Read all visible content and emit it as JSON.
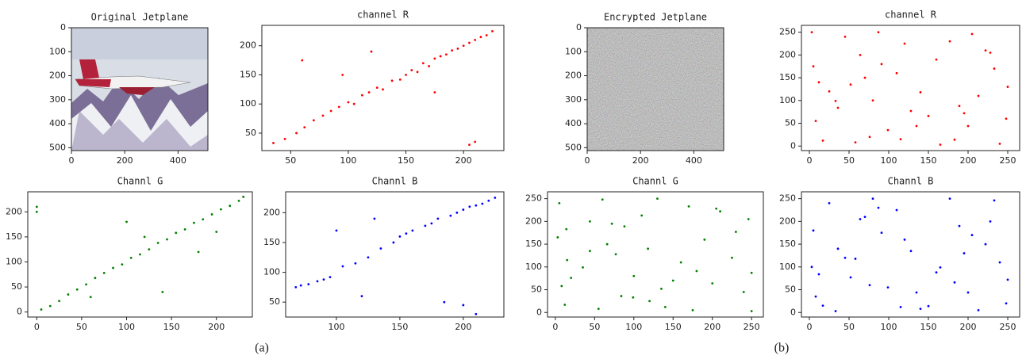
{
  "chart_data": [
    {
      "type": "image",
      "title": "Original  Jetplane",
      "xlim": [
        0,
        512
      ],
      "ylim": [
        512,
        0
      ],
      "xticks": [
        0,
        200,
        400
      ],
      "yticks": [
        0,
        100,
        200,
        300,
        400,
        500
      ]
    },
    {
      "type": "scatter",
      "title": "channel R",
      "color": "#ff0000",
      "xlim": [
        25,
        235
      ],
      "ylim": [
        20,
        235
      ],
      "xticks": [
        50,
        100,
        150,
        200
      ],
      "yticks": [
        50,
        100,
        150,
        200
      ],
      "x": [
        35,
        45,
        55,
        62,
        70,
        78,
        85,
        92,
        100,
        105,
        112,
        118,
        125,
        130,
        138,
        145,
        150,
        155,
        160,
        165,
        170,
        175,
        180,
        185,
        190,
        195,
        200,
        205,
        210,
        215,
        220,
        225,
        60,
        120,
        205,
        95,
        175,
        210
      ],
      "values": [
        33,
        40,
        50,
        60,
        72,
        80,
        88,
        95,
        103,
        100,
        115,
        120,
        128,
        125,
        140,
        142,
        150,
        158,
        155,
        170,
        165,
        178,
        182,
        185,
        192,
        195,
        200,
        205,
        210,
        215,
        218,
        225,
        175,
        190,
        30,
        150,
        120,
        35
      ]
    },
    {
      "type": "image",
      "title": "Encrypted  Jetplane",
      "xlim": [
        0,
        512
      ],
      "ylim": [
        512,
        0
      ],
      "xticks": [
        0,
        200,
        400
      ],
      "yticks": [
        0,
        100,
        200,
        300,
        400,
        500
      ]
    },
    {
      "type": "scatter",
      "title": "channel R",
      "color": "#ff0000",
      "xlim": [
        -10,
        265
      ],
      "ylim": [
        -10,
        265
      ],
      "xticks": [
        0,
        50,
        100,
        150,
        200,
        250
      ],
      "yticks": [
        0,
        50,
        100,
        150,
        200,
        250
      ],
      "x": [
        3,
        17,
        250,
        128,
        64,
        200,
        91,
        33,
        177,
        240,
        12,
        150,
        222,
        76,
        110,
        45,
        189,
        8,
        233,
        140,
        58,
        205,
        99,
        160,
        25,
        120,
        248,
        70,
        183,
        36,
        213,
        87,
        165,
        5,
        135,
        228,
        52,
        195,
        115,
        80
      ],
      "values": [
        250,
        12,
        130,
        77,
        200,
        44,
        180,
        99,
        230,
        5,
        140,
        66,
        210,
        20,
        160,
        240,
        88,
        55,
        170,
        118,
        8,
        246,
        35,
        190,
        120,
        225,
        60,
        150,
        14,
        84,
        110,
        250,
        3,
        175,
        44,
        205,
        135,
        72,
        15,
        100
      ]
    },
    {
      "type": "scatter",
      "title": "Channl G",
      "color": "#008000",
      "xlim": [
        -10,
        240
      ],
      "ylim": [
        -10,
        240
      ],
      "xticks": [
        0,
        50,
        100,
        150,
        200
      ],
      "yticks": [
        0,
        50,
        100,
        150,
        200
      ],
      "x": [
        0,
        0,
        5,
        15,
        25,
        35,
        45,
        55,
        65,
        75,
        85,
        95,
        105,
        115,
        125,
        135,
        145,
        155,
        165,
        175,
        185,
        195,
        205,
        215,
        225,
        230,
        100,
        140,
        60,
        180,
        120,
        200
      ],
      "values": [
        200,
        210,
        5,
        12,
        22,
        35,
        45,
        55,
        68,
        78,
        88,
        95,
        108,
        115,
        125,
        138,
        145,
        158,
        165,
        178,
        185,
        195,
        205,
        212,
        222,
        230,
        180,
        40,
        30,
        120,
        150,
        160
      ]
    },
    {
      "type": "scatter",
      "title": "Channl B",
      "color": "#0000ff",
      "xlim": [
        60,
        232
      ],
      "ylim": [
        25,
        235
      ],
      "xticks": [
        100,
        150,
        200
      ],
      "yticks": [
        50,
        100,
        150,
        200
      ],
      "x": [
        68,
        72,
        78,
        85,
        90,
        95,
        105,
        115,
        125,
        135,
        145,
        150,
        155,
        160,
        170,
        175,
        180,
        190,
        195,
        200,
        205,
        210,
        215,
        220,
        225,
        100,
        130,
        185,
        200,
        210,
        120
      ],
      "values": [
        75,
        78,
        80,
        85,
        88,
        92,
        110,
        115,
        125,
        140,
        150,
        160,
        165,
        170,
        178,
        182,
        190,
        195,
        200,
        205,
        210,
        212,
        215,
        220,
        225,
        170,
        190,
        50,
        45,
        30,
        60
      ]
    },
    {
      "type": "scatter",
      "title": "Channl G",
      "color": "#008000",
      "xlim": [
        -10,
        265
      ],
      "ylim": [
        -10,
        265
      ],
      "xticks": [
        0,
        50,
        100,
        150,
        200,
        250
      ],
      "yticks": [
        0,
        50,
        100,
        150,
        200,
        250
      ],
      "x": [
        250,
        12,
        130,
        77,
        200,
        44,
        180,
        99,
        230,
        5,
        140,
        66,
        210,
        20,
        160,
        240,
        88,
        55,
        170,
        118,
        8,
        246,
        35,
        190,
        120,
        225,
        60,
        150,
        14,
        84,
        110,
        250,
        3,
        175,
        44,
        205,
        135,
        72,
        15,
        100
      ],
      "values": [
        3,
        17,
        250,
        128,
        64,
        200,
        91,
        33,
        177,
        240,
        12,
        150,
        222,
        76,
        110,
        45,
        189,
        8,
        233,
        140,
        58,
        205,
        99,
        160,
        25,
        120,
        248,
        70,
        183,
        36,
        213,
        87,
        165,
        5,
        135,
        228,
        52,
        195,
        115,
        80
      ]
    },
    {
      "type": "scatter",
      "title": "Channl B",
      "color": "#0000ff",
      "xlim": [
        -10,
        265
      ],
      "ylim": [
        -10,
        265
      ],
      "xticks": [
        0,
        50,
        100,
        150,
        200,
        250
      ],
      "yticks": [
        0,
        50,
        100,
        150,
        200,
        250
      ],
      "x": [
        80,
        115,
        195,
        52,
        228,
        135,
        5,
        165,
        87,
        213,
        36,
        183,
        70,
        248,
        120,
        25,
        160,
        99,
        205,
        58,
        140,
        233,
        8,
        189,
        45,
        110,
        76,
        222,
        150,
        12,
        240,
        177,
        33,
        91,
        200,
        64,
        128,
        250,
        17,
        3
      ],
      "values": [
        250,
        12,
        130,
        77,
        200,
        44,
        180,
        99,
        230,
        5,
        140,
        66,
        210,
        20,
        160,
        240,
        88,
        55,
        170,
        118,
        8,
        246,
        35,
        190,
        120,
        225,
        60,
        150,
        14,
        84,
        110,
        250,
        3,
        175,
        44,
        205,
        135,
        72,
        15,
        100
      ]
    }
  ],
  "captions": [
    "(a)",
    "(b)"
  ]
}
